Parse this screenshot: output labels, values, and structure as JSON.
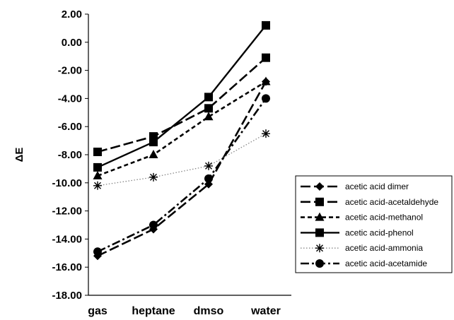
{
  "chart_data": {
    "type": "line",
    "categories": [
      "gas",
      "heptane",
      "dmso",
      "water"
    ],
    "ylabel": "ΔE",
    "xlabel": "",
    "title": "",
    "ylim": [
      -18,
      2
    ],
    "yticks": [
      "2.00",
      "0.00",
      "-2.00",
      "-4.00",
      "-6.00",
      "-8.00",
      "-10.00",
      "-12.00",
      "-14.00",
      "-16.00",
      "-18.00"
    ],
    "grid": false,
    "legend_position": "right",
    "series": [
      {
        "name": "acetic acid dimer",
        "values": [
          -15.2,
          -13.3,
          -10.1,
          -2.8
        ],
        "marker": "diamond",
        "dash": "long",
        "color": "#000000"
      },
      {
        "name": "acetic acid-acetaldehyde",
        "values": [
          -7.8,
          -6.7,
          -4.7,
          -1.1
        ],
        "marker": "square",
        "dash": "long",
        "color": "#000000"
      },
      {
        "name": "acetic acid-methanol",
        "values": [
          -9.5,
          -8.0,
          -5.3,
          -2.8
        ],
        "marker": "triangle",
        "dash": "short",
        "color": "#000000"
      },
      {
        "name": "acetic acid-phenol",
        "values": [
          -8.9,
          -7.1,
          -3.9,
          1.2
        ],
        "marker": "square",
        "dash": "solid",
        "color": "#000000"
      },
      {
        "name": "acetic acid-ammonia",
        "values": [
          -10.2,
          -9.6,
          -8.8,
          -6.5
        ],
        "marker": "star",
        "dash": "dotted",
        "color": "#888888"
      },
      {
        "name": "acetic acid-acetamide",
        "values": [
          -14.9,
          -13.0,
          -9.7,
          -4.0
        ],
        "marker": "circle",
        "dash": "dashdot",
        "color": "#000000"
      }
    ]
  }
}
